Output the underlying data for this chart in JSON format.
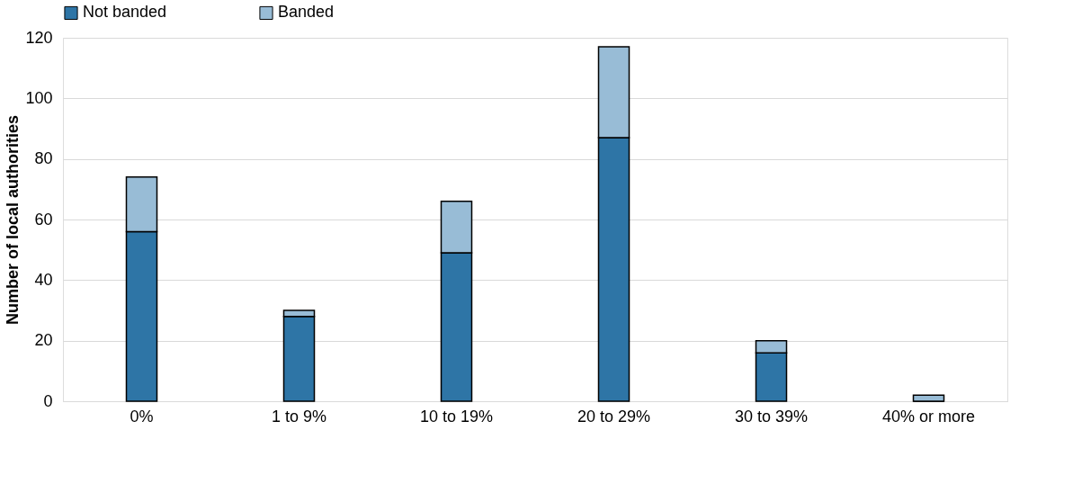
{
  "chart_data": {
    "type": "bar",
    "stacked": true,
    "ylabel": "Number of local authorities",
    "categories": [
      "0%",
      "1 to 9%",
      "10 to 19%",
      "20 to 29%",
      "30 to 39%",
      "40% or more"
    ],
    "series": [
      {
        "name": "Not banded",
        "color": "#2e75a6",
        "values": [
          56,
          28,
          49,
          87,
          16,
          0
        ]
      },
      {
        "name": "Banded",
        "color": "#98bcd6",
        "values": [
          18,
          2,
          17,
          30,
          4,
          2
        ]
      }
    ],
    "ylim": [
      0,
      120
    ],
    "yticks": [
      0,
      20,
      40,
      60,
      80,
      100,
      120
    ],
    "grid": "y",
    "legend": "top"
  }
}
